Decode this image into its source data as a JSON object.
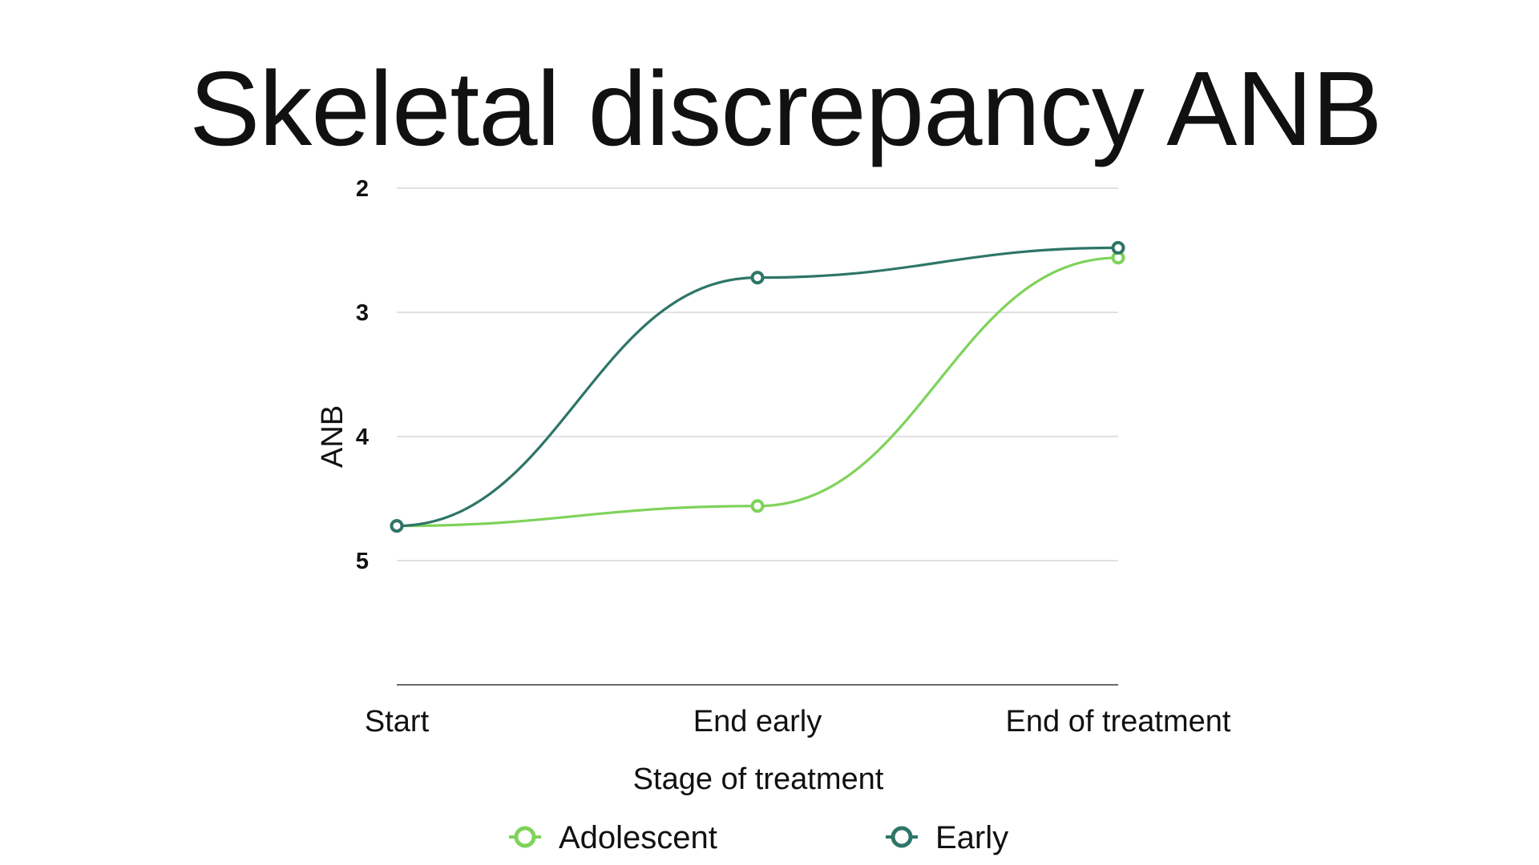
{
  "chart_data": {
    "type": "line",
    "title": "Skeletal discrepancy ANB",
    "xlabel": "Stage of treatment",
    "ylabel": "ANB",
    "categories": [
      "Start",
      "End early",
      "End of treatment"
    ],
    "y_ticks": [
      2,
      3,
      4,
      5
    ],
    "ylim": [
      2,
      6
    ],
    "y_inverted": true,
    "grid": true,
    "legend_position": "bottom",
    "series": [
      {
        "name": "Adolescent",
        "color": "#7ED35A",
        "values": [
          4.72,
          4.56,
          2.56
        ]
      },
      {
        "name": "Early",
        "color": "#2E7568",
        "values": [
          4.72,
          2.72,
          2.48
        ]
      }
    ]
  }
}
